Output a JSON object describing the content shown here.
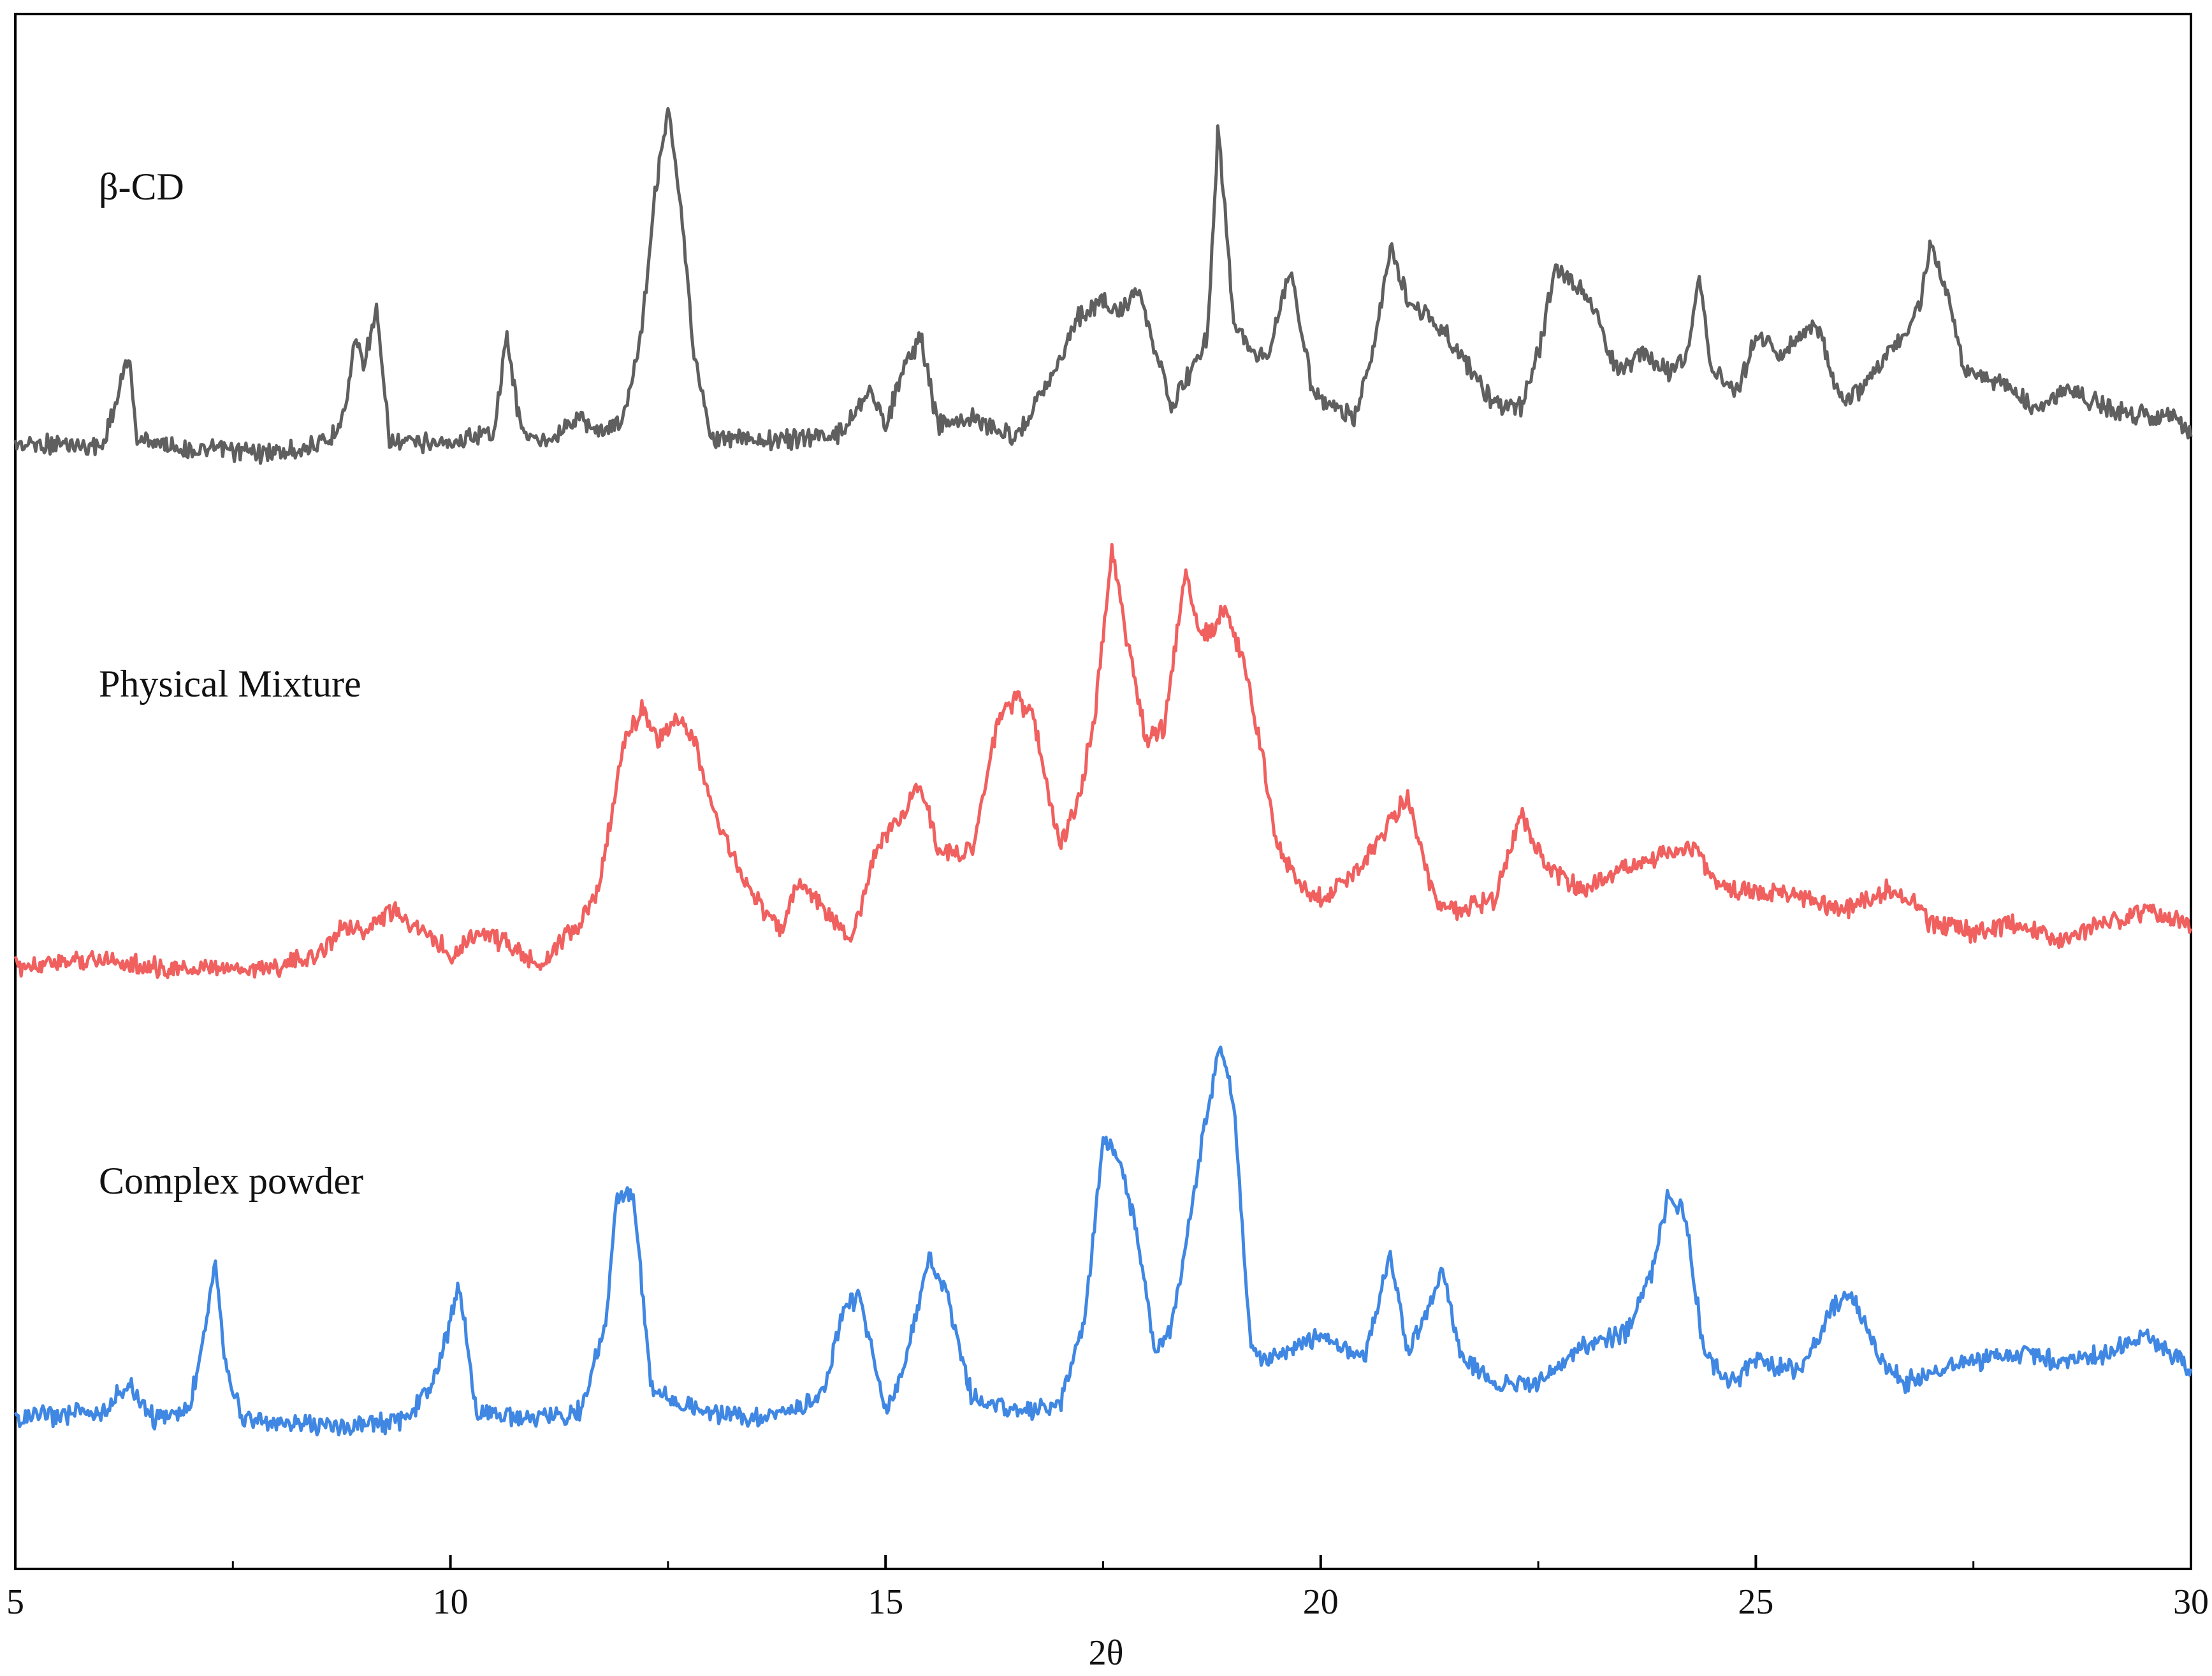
{
  "chart_data": {
    "type": "line",
    "xlabel": "2θ",
    "ylabel": "",
    "xlim": [
      5,
      30
    ],
    "xticks": [
      5,
      10,
      15,
      20,
      25,
      30
    ],
    "xtick_labels": [
      "5",
      "10",
      "15",
      "20",
      "25",
      "30"
    ],
    "grid": false,
    "legend": "none",
    "y_axis_ticks": false,
    "series": [
      {
        "name": "β-CD",
        "color": "#5f5f5f",
        "offset": 2,
        "x": [
          5.0,
          6.0,
          6.2,
          6.3,
          6.4,
          7.0,
          8.0,
          8.6,
          8.8,
          8.9,
          9.0,
          9.15,
          9.3,
          10.0,
          10.5,
          10.65,
          10.8,
          11.0,
          11.5,
          11.7,
          12.0,
          12.2,
          12.35,
          12.5,
          12.65,
          12.8,
          13.0,
          13.5,
          14.0,
          14.5,
          14.8,
          15.0,
          15.2,
          15.4,
          15.6,
          16.0,
          16.5,
          16.8,
          17.0,
          17.2,
          17.5,
          17.7,
          17.9,
          18.1,
          18.3,
          18.5,
          18.7,
          18.82,
          19.0,
          19.2,
          19.4,
          19.65,
          19.9,
          20.1,
          20.4,
          20.6,
          20.8,
          21.0,
          21.3,
          21.6,
          22.0,
          22.3,
          22.5,
          22.7,
          22.9,
          23.1,
          23.4,
          23.7,
          24.0,
          24.2,
          24.35,
          24.5,
          24.8,
          25.0,
          25.3,
          25.5,
          25.7,
          26.0,
          26.2,
          26.5,
          26.7,
          26.9,
          27.0,
          27.2,
          27.4,
          27.8,
          28.2,
          28.6,
          29.0,
          29.4,
          29.8,
          30.0
        ],
        "y": [
          0.05,
          0.04,
          0.2,
          0.3,
          0.06,
          0.03,
          0.02,
          0.05,
          0.15,
          0.35,
          0.28,
          0.42,
          0.05,
          0.05,
          0.08,
          0.35,
          0.1,
          0.05,
          0.12,
          0.08,
          0.12,
          0.38,
          0.75,
          1.0,
          0.7,
          0.3,
          0.06,
          0.06,
          0.06,
          0.08,
          0.2,
          0.1,
          0.25,
          0.35,
          0.1,
          0.12,
          0.06,
          0.2,
          0.28,
          0.4,
          0.45,
          0.42,
          0.48,
          0.3,
          0.15,
          0.25,
          0.35,
          0.94,
          0.4,
          0.3,
          0.3,
          0.55,
          0.2,
          0.15,
          0.12,
          0.3,
          0.6,
          0.45,
          0.4,
          0.3,
          0.15,
          0.15,
          0.3,
          0.55,
          0.5,
          0.45,
          0.25,
          0.3,
          0.25,
          0.3,
          0.5,
          0.25,
          0.2,
          0.35,
          0.3,
          0.35,
          0.38,
          0.15,
          0.2,
          0.3,
          0.35,
          0.45,
          0.62,
          0.48,
          0.25,
          0.22,
          0.15,
          0.2,
          0.15,
          0.13,
          0.12,
          0.08
        ]
      },
      {
        "name": "Physical Mixture",
        "color": "#f0605f",
        "offset": 1,
        "x": [
          5.0,
          6.0,
          6.5,
          7.0,
          8.0,
          8.5,
          8.8,
          9.0,
          9.3,
          9.6,
          10.0,
          10.3,
          10.6,
          11.0,
          11.5,
          11.7,
          12.0,
          12.2,
          12.4,
          12.6,
          12.8,
          13.0,
          13.3,
          13.6,
          13.8,
          14.0,
          14.3,
          14.6,
          14.9,
          15.1,
          15.4,
          15.6,
          15.8,
          16.0,
          16.3,
          16.5,
          16.7,
          17.0,
          17.2,
          17.4,
          17.6,
          17.8,
          18.0,
          18.2,
          18.45,
          18.6,
          18.7,
          18.9,
          19.1,
          19.3,
          19.5,
          19.8,
          20.0,
          20.3,
          20.6,
          21.0,
          21.3,
          21.6,
          22.0,
          22.3,
          22.6,
          23.0,
          23.5,
          24.0,
          24.3,
          24.6,
          25.0,
          25.5,
          26.0,
          26.5,
          26.8,
          27.0,
          27.5,
          28.0,
          28.5,
          29.0,
          29.5,
          30.0
        ],
        "y": [
          0.02,
          0.04,
          0.02,
          0.01,
          0.02,
          0.05,
          0.12,
          0.1,
          0.15,
          0.12,
          0.05,
          0.1,
          0.08,
          0.02,
          0.12,
          0.2,
          0.55,
          0.62,
          0.55,
          0.6,
          0.55,
          0.4,
          0.25,
          0.15,
          0.1,
          0.22,
          0.15,
          0.08,
          0.3,
          0.35,
          0.45,
          0.3,
          0.28,
          0.3,
          0.6,
          0.65,
          0.6,
          0.3,
          0.4,
          0.6,
          1.0,
          0.75,
          0.55,
          0.58,
          0.95,
          0.8,
          0.8,
          0.85,
          0.75,
          0.55,
          0.3,
          0.2,
          0.18,
          0.22,
          0.3,
          0.42,
          0.18,
          0.15,
          0.18,
          0.38,
          0.25,
          0.2,
          0.25,
          0.28,
          0.3,
          0.2,
          0.2,
          0.18,
          0.15,
          0.2,
          0.18,
          0.12,
          0.1,
          0.12,
          0.08,
          0.12,
          0.15,
          0.12
        ]
      },
      {
        "name": "Complex powder",
        "color": "#3f87e3",
        "offset": 0,
        "x": [
          5.0,
          6.0,
          6.3,
          6.6,
          7.0,
          7.2,
          7.3,
          7.4,
          7.6,
          8.0,
          9.0,
          9.5,
          9.8,
          10.0,
          10.1,
          10.3,
          11.0,
          11.5,
          11.8,
          11.9,
          12.1,
          12.3,
          12.5,
          13.0,
          13.5,
          14.0,
          14.3,
          14.5,
          14.7,
          14.9,
          15.0,
          15.2,
          15.5,
          15.7,
          16.0,
          16.5,
          17.0,
          17.3,
          17.5,
          17.7,
          17.9,
          18.1,
          18.3,
          18.6,
          18.85,
          19.0,
          19.2,
          19.5,
          20.0,
          20.5,
          20.8,
          21.0,
          21.2,
          21.4,
          21.6,
          22.0,
          22.5,
          23.0,
          23.5,
          23.8,
          24.0,
          24.2,
          24.4,
          24.7,
          25.0,
          25.5,
          25.9,
          26.1,
          26.4,
          26.7,
          27.0,
          27.5,
          28.0,
          28.5,
          29.0,
          29.5,
          30.0
        ],
        "y": [
          0.03,
          0.05,
          0.12,
          0.03,
          0.05,
          0.3,
          0.45,
          0.2,
          0.03,
          0.02,
          0.01,
          0.03,
          0.12,
          0.28,
          0.38,
          0.05,
          0.03,
          0.05,
          0.3,
          0.6,
          0.62,
          0.12,
          0.08,
          0.04,
          0.03,
          0.06,
          0.1,
          0.3,
          0.35,
          0.15,
          0.05,
          0.15,
          0.45,
          0.35,
          0.08,
          0.05,
          0.06,
          0.3,
          0.75,
          0.7,
          0.5,
          0.2,
          0.28,
          0.7,
          1.0,
          0.85,
          0.2,
          0.18,
          0.25,
          0.18,
          0.45,
          0.2,
          0.3,
          0.42,
          0.2,
          0.12,
          0.12,
          0.22,
          0.25,
          0.4,
          0.62,
          0.55,
          0.2,
          0.12,
          0.18,
          0.15,
          0.32,
          0.35,
          0.2,
          0.12,
          0.15,
          0.18,
          0.2,
          0.18,
          0.2,
          0.25,
          0.15
        ]
      }
    ]
  }
}
